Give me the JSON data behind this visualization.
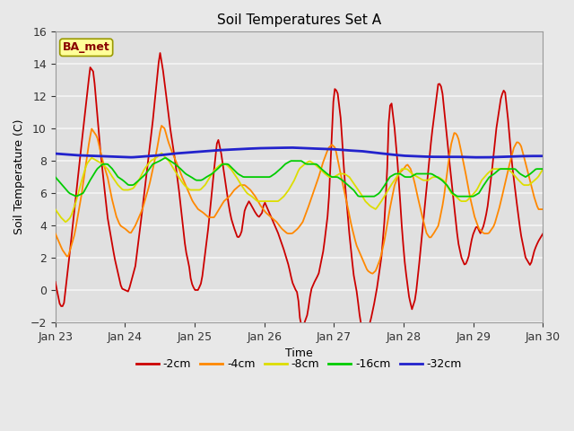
{
  "title": "Soil Temperatures Set A",
  "xlabel": "Time",
  "ylabel": "Soil Temperature (C)",
  "ylim": [
    -2,
    16
  ],
  "xlim": [
    0,
    7
  ],
  "xtick_labels": [
    "Jan 23",
    "Jan 24",
    "Jan 25",
    "Jan 26",
    "Jan 27",
    "Jan 28",
    "Jan 29",
    "Jan 30"
  ],
  "ytick_positions": [
    -2,
    0,
    2,
    4,
    6,
    8,
    10,
    12,
    14,
    16
  ],
  "fig_bg": "#e8e8e8",
  "axes_bg": "#e0e0e0",
  "grid_color": "#f5f5f5",
  "title_fontsize": 11,
  "label_fontsize": 9,
  "tick_fontsize": 9,
  "annotation_text": "BA_met",
  "annotation_bg": "#ffff99",
  "annotation_border": "#999900",
  "colors": {
    "2cm": "#cc0000",
    "4cm": "#ff8800",
    "8cm": "#dddd00",
    "16cm": "#00cc00",
    "32cm": "#2222cc"
  },
  "pts_2cm": [
    [
      0.0,
      0.5
    ],
    [
      0.07,
      -1.0
    ],
    [
      0.12,
      -1.0
    ],
    [
      0.2,
      2.0
    ],
    [
      0.35,
      8.0
    ],
    [
      0.5,
      13.8
    ],
    [
      0.55,
      13.5
    ],
    [
      0.65,
      8.5
    ],
    [
      0.75,
      4.5
    ],
    [
      0.85,
      2.0
    ],
    [
      0.95,
      0.1
    ],
    [
      1.0,
      0.0
    ],
    [
      1.05,
      -0.1
    ],
    [
      1.15,
      1.5
    ],
    [
      1.25,
      5.0
    ],
    [
      1.4,
      10.5
    ],
    [
      1.5,
      14.8
    ],
    [
      1.55,
      13.5
    ],
    [
      1.65,
      10.0
    ],
    [
      1.72,
      8.0
    ],
    [
      1.78,
      6.0
    ],
    [
      1.83,
      4.0
    ],
    [
      1.87,
      2.5
    ],
    [
      1.92,
      1.5
    ],
    [
      1.95,
      0.5
    ],
    [
      2.0,
      0.0
    ],
    [
      2.05,
      0.0
    ],
    [
      2.1,
      0.5
    ],
    [
      2.2,
      4.0
    ],
    [
      2.28,
      7.5
    ],
    [
      2.33,
      9.5
    ],
    [
      2.38,
      8.5
    ],
    [
      2.43,
      7.0
    ],
    [
      2.48,
      5.5
    ],
    [
      2.52,
      4.5
    ],
    [
      2.57,
      3.8
    ],
    [
      2.62,
      3.2
    ],
    [
      2.67,
      3.5
    ],
    [
      2.72,
      5.0
    ],
    [
      2.78,
      5.5
    ],
    [
      2.82,
      5.2
    ],
    [
      2.87,
      4.8
    ],
    [
      2.92,
      4.5
    ],
    [
      2.97,
      4.8
    ],
    [
      3.0,
      5.5
    ],
    [
      3.05,
      5.0
    ],
    [
      3.1,
      4.5
    ],
    [
      3.15,
      4.0
    ],
    [
      3.2,
      3.5
    ],
    [
      3.28,
      2.5
    ],
    [
      3.35,
      1.5
    ],
    [
      3.4,
      0.5
    ],
    [
      3.45,
      0.0
    ],
    [
      3.48,
      -0.2
    ],
    [
      3.52,
      -2.2
    ],
    [
      3.57,
      -2.1
    ],
    [
      3.62,
      -1.5
    ],
    [
      3.67,
      0.0
    ],
    [
      3.72,
      0.5
    ],
    [
      3.78,
      1.0
    ],
    [
      3.85,
      2.5
    ],
    [
      3.92,
      5.0
    ],
    [
      4.0,
      12.5
    ],
    [
      4.05,
      12.3
    ],
    [
      4.1,
      10.5
    ],
    [
      4.15,
      7.0
    ],
    [
      4.18,
      5.5
    ],
    [
      4.22,
      3.5
    ],
    [
      4.28,
      1.0
    ],
    [
      4.33,
      -0.2
    ],
    [
      4.38,
      -2.0
    ],
    [
      4.42,
      -2.5
    ],
    [
      4.47,
      -2.5
    ],
    [
      4.52,
      -2.0
    ],
    [
      4.57,
      -1.0
    ],
    [
      4.62,
      0.2
    ],
    [
      4.68,
      2.0
    ],
    [
      4.72,
      4.0
    ],
    [
      4.76,
      7.0
    ],
    [
      4.79,
      11.0
    ],
    [
      4.82,
      11.8
    ],
    [
      4.87,
      10.0
    ],
    [
      4.91,
      8.0
    ],
    [
      4.95,
      5.5
    ],
    [
      4.98,
      3.5
    ],
    [
      5.02,
      1.5
    ],
    [
      5.05,
      0.5
    ],
    [
      5.08,
      -0.5
    ],
    [
      5.12,
      -1.2
    ],
    [
      5.17,
      -0.5
    ],
    [
      5.22,
      1.5
    ],
    [
      5.3,
      5.0
    ],
    [
      5.4,
      9.5
    ],
    [
      5.5,
      12.9
    ],
    [
      5.55,
      12.5
    ],
    [
      5.62,
      9.5
    ],
    [
      5.68,
      7.0
    ],
    [
      5.73,
      5.0
    ],
    [
      5.78,
      3.0
    ],
    [
      5.83,
      2.0
    ],
    [
      5.88,
      1.5
    ],
    [
      5.93,
      2.0
    ],
    [
      5.97,
      3.0
    ],
    [
      6.0,
      3.5
    ],
    [
      6.05,
      4.0
    ],
    [
      6.1,
      3.5
    ],
    [
      6.15,
      4.0
    ],
    [
      6.2,
      5.0
    ],
    [
      6.27,
      7.5
    ],
    [
      6.33,
      10.0
    ],
    [
      6.4,
      12.0
    ],
    [
      6.45,
      12.5
    ],
    [
      6.5,
      10.5
    ],
    [
      6.55,
      8.0
    ],
    [
      6.62,
      5.5
    ],
    [
      6.68,
      3.5
    ],
    [
      6.75,
      2.0
    ],
    [
      6.82,
      1.5
    ],
    [
      6.88,
      2.5
    ],
    [
      6.93,
      3.0
    ],
    [
      7.0,
      3.5
    ]
  ],
  "pts_4cm": [
    [
      0.0,
      3.5
    ],
    [
      0.1,
      2.5
    ],
    [
      0.18,
      2.0
    ],
    [
      0.28,
      3.5
    ],
    [
      0.38,
      6.0
    ],
    [
      0.48,
      9.0
    ],
    [
      0.52,
      10.0
    ],
    [
      0.6,
      9.5
    ],
    [
      0.68,
      8.0
    ],
    [
      0.75,
      7.0
    ],
    [
      0.82,
      5.5
    ],
    [
      0.88,
      4.5
    ],
    [
      0.93,
      4.0
    ],
    [
      1.0,
      3.8
    ],
    [
      1.08,
      3.5
    ],
    [
      1.15,
      4.0
    ],
    [
      1.25,
      5.0
    ],
    [
      1.35,
      6.5
    ],
    [
      1.45,
      8.5
    ],
    [
      1.52,
      10.2
    ],
    [
      1.57,
      10.0
    ],
    [
      1.62,
      9.2
    ],
    [
      1.68,
      8.5
    ],
    [
      1.75,
      7.8
    ],
    [
      1.82,
      7.0
    ],
    [
      1.9,
      6.2
    ],
    [
      1.97,
      5.5
    ],
    [
      2.05,
      5.0
    ],
    [
      2.12,
      4.8
    ],
    [
      2.2,
      4.5
    ],
    [
      2.28,
      4.5
    ],
    [
      2.35,
      5.0
    ],
    [
      2.42,
      5.5
    ],
    [
      2.5,
      5.8
    ],
    [
      2.57,
      6.2
    ],
    [
      2.65,
      6.5
    ],
    [
      2.72,
      6.5
    ],
    [
      2.8,
      6.2
    ],
    [
      2.87,
      5.8
    ],
    [
      2.95,
      5.2
    ],
    [
      3.02,
      4.8
    ],
    [
      3.1,
      4.5
    ],
    [
      3.18,
      4.2
    ],
    [
      3.25,
      3.8
    ],
    [
      3.33,
      3.5
    ],
    [
      3.4,
      3.5
    ],
    [
      3.48,
      3.8
    ],
    [
      3.55,
      4.2
    ],
    [
      3.62,
      5.0
    ],
    [
      3.7,
      6.0
    ],
    [
      3.78,
      7.0
    ],
    [
      3.85,
      8.0
    ],
    [
      3.92,
      8.8
    ],
    [
      3.97,
      9.0
    ],
    [
      4.02,
      8.8
    ],
    [
      4.08,
      7.5
    ],
    [
      4.13,
      6.5
    ],
    [
      4.18,
      5.5
    ],
    [
      4.25,
      4.0
    ],
    [
      4.32,
      2.8
    ],
    [
      4.4,
      2.0
    ],
    [
      4.48,
      1.2
    ],
    [
      4.55,
      1.0
    ],
    [
      4.6,
      1.2
    ],
    [
      4.67,
      2.0
    ],
    [
      4.73,
      3.2
    ],
    [
      4.8,
      5.0
    ],
    [
      4.87,
      6.5
    ],
    [
      4.93,
      7.2
    ],
    [
      5.0,
      7.5
    ],
    [
      5.05,
      7.8
    ],
    [
      5.1,
      7.5
    ],
    [
      5.15,
      6.8
    ],
    [
      5.2,
      5.8
    ],
    [
      5.27,
      4.5
    ],
    [
      5.33,
      3.5
    ],
    [
      5.38,
      3.2
    ],
    [
      5.43,
      3.5
    ],
    [
      5.5,
      4.0
    ],
    [
      5.57,
      5.5
    ],
    [
      5.63,
      7.5
    ],
    [
      5.68,
      9.0
    ],
    [
      5.73,
      9.8
    ],
    [
      5.78,
      9.5
    ],
    [
      5.83,
      8.5
    ],
    [
      5.9,
      7.0
    ],
    [
      5.95,
      5.8
    ],
    [
      6.02,
      4.5
    ],
    [
      6.08,
      3.8
    ],
    [
      6.15,
      3.5
    ],
    [
      6.22,
      3.5
    ],
    [
      6.3,
      4.0
    ],
    [
      6.38,
      5.2
    ],
    [
      6.45,
      6.5
    ],
    [
      6.52,
      7.8
    ],
    [
      6.58,
      8.8
    ],
    [
      6.63,
      9.2
    ],
    [
      6.68,
      9.0
    ],
    [
      6.73,
      8.2
    ],
    [
      6.8,
      7.0
    ],
    [
      6.87,
      5.8
    ],
    [
      6.93,
      5.0
    ],
    [
      7.0,
      5.0
    ]
  ],
  "pts_8cm": [
    [
      0.0,
      5.0
    ],
    [
      0.08,
      4.5
    ],
    [
      0.15,
      4.2
    ],
    [
      0.22,
      4.5
    ],
    [
      0.3,
      5.5
    ],
    [
      0.38,
      6.8
    ],
    [
      0.45,
      7.8
    ],
    [
      0.52,
      8.2
    ],
    [
      0.6,
      8.0
    ],
    [
      0.68,
      7.8
    ],
    [
      0.75,
      7.5
    ],
    [
      0.82,
      7.0
    ],
    [
      0.9,
      6.5
    ],
    [
      0.97,
      6.2
    ],
    [
      1.05,
      6.2
    ],
    [
      1.12,
      6.3
    ],
    [
      1.2,
      6.8
    ],
    [
      1.28,
      7.5
    ],
    [
      1.37,
      8.0
    ],
    [
      1.45,
      8.2
    ],
    [
      1.53,
      8.5
    ],
    [
      1.58,
      8.2
    ],
    [
      1.63,
      8.0
    ],
    [
      1.7,
      7.5
    ],
    [
      1.77,
      7.0
    ],
    [
      1.85,
      6.5
    ],
    [
      1.93,
      6.2
    ],
    [
      2.0,
      6.2
    ],
    [
      2.08,
      6.2
    ],
    [
      2.15,
      6.5
    ],
    [
      2.22,
      7.0
    ],
    [
      2.3,
      7.5
    ],
    [
      2.38,
      7.8
    ],
    [
      2.45,
      7.8
    ],
    [
      2.52,
      7.5
    ],
    [
      2.6,
      7.0
    ],
    [
      2.67,
      6.5
    ],
    [
      2.75,
      6.0
    ],
    [
      2.82,
      5.8
    ],
    [
      2.9,
      5.5
    ],
    [
      2.97,
      5.5
    ],
    [
      3.05,
      5.5
    ],
    [
      3.12,
      5.5
    ],
    [
      3.2,
      5.5
    ],
    [
      3.28,
      5.8
    ],
    [
      3.35,
      6.2
    ],
    [
      3.43,
      6.8
    ],
    [
      3.5,
      7.5
    ],
    [
      3.58,
      7.8
    ],
    [
      3.65,
      8.0
    ],
    [
      3.72,
      7.8
    ],
    [
      3.8,
      7.5
    ],
    [
      3.87,
      7.2
    ],
    [
      3.93,
      7.0
    ],
    [
      4.0,
      7.0
    ],
    [
      4.08,
      7.2
    ],
    [
      4.15,
      7.2
    ],
    [
      4.22,
      7.0
    ],
    [
      4.3,
      6.5
    ],
    [
      4.38,
      6.0
    ],
    [
      4.45,
      5.5
    ],
    [
      4.52,
      5.2
    ],
    [
      4.6,
      5.0
    ],
    [
      4.68,
      5.5
    ],
    [
      4.75,
      6.0
    ],
    [
      4.82,
      6.5
    ],
    [
      4.9,
      7.0
    ],
    [
      4.97,
      7.5
    ],
    [
      5.05,
      7.5
    ],
    [
      5.12,
      7.2
    ],
    [
      5.2,
      7.0
    ],
    [
      5.28,
      6.8
    ],
    [
      5.35,
      6.8
    ],
    [
      5.42,
      7.0
    ],
    [
      5.5,
      7.0
    ],
    [
      5.57,
      6.8
    ],
    [
      5.62,
      6.5
    ],
    [
      5.68,
      6.0
    ],
    [
      5.75,
      5.8
    ],
    [
      5.82,
      5.5
    ],
    [
      5.9,
      5.5
    ],
    [
      5.97,
      5.8
    ],
    [
      6.05,
      6.2
    ],
    [
      6.12,
      6.8
    ],
    [
      6.2,
      7.2
    ],
    [
      6.28,
      7.5
    ],
    [
      6.35,
      7.5
    ],
    [
      6.42,
      7.5
    ],
    [
      6.5,
      7.5
    ],
    [
      6.57,
      7.2
    ],
    [
      6.65,
      6.8
    ],
    [
      6.72,
      6.5
    ],
    [
      6.8,
      6.5
    ],
    [
      6.88,
      6.8
    ],
    [
      6.93,
      7.0
    ],
    [
      7.0,
      7.5
    ]
  ],
  "pts_16cm": [
    [
      0.0,
      7.0
    ],
    [
      0.1,
      6.5
    ],
    [
      0.2,
      6.0
    ],
    [
      0.3,
      5.8
    ],
    [
      0.4,
      6.0
    ],
    [
      0.5,
      6.8
    ],
    [
      0.6,
      7.5
    ],
    [
      0.68,
      7.8
    ],
    [
      0.75,
      7.8
    ],
    [
      0.82,
      7.5
    ],
    [
      0.9,
      7.0
    ],
    [
      0.97,
      6.8
    ],
    [
      1.05,
      6.5
    ],
    [
      1.12,
      6.5
    ],
    [
      1.2,
      6.8
    ],
    [
      1.3,
      7.2
    ],
    [
      1.4,
      7.8
    ],
    [
      1.5,
      8.0
    ],
    [
      1.58,
      8.2
    ],
    [
      1.65,
      8.0
    ],
    [
      1.72,
      7.8
    ],
    [
      1.8,
      7.5
    ],
    [
      1.87,
      7.2
    ],
    [
      1.95,
      7.0
    ],
    [
      2.02,
      6.8
    ],
    [
      2.1,
      6.8
    ],
    [
      2.17,
      7.0
    ],
    [
      2.25,
      7.2
    ],
    [
      2.33,
      7.5
    ],
    [
      2.4,
      7.8
    ],
    [
      2.48,
      7.8
    ],
    [
      2.55,
      7.5
    ],
    [
      2.62,
      7.2
    ],
    [
      2.7,
      7.0
    ],
    [
      2.78,
      7.0
    ],
    [
      2.85,
      7.0
    ],
    [
      2.93,
      7.0
    ],
    [
      3.0,
      7.0
    ],
    [
      3.08,
      7.0
    ],
    [
      3.15,
      7.2
    ],
    [
      3.23,
      7.5
    ],
    [
      3.3,
      7.8
    ],
    [
      3.38,
      8.0
    ],
    [
      3.45,
      8.0
    ],
    [
      3.53,
      8.0
    ],
    [
      3.6,
      7.8
    ],
    [
      3.68,
      7.8
    ],
    [
      3.75,
      7.8
    ],
    [
      3.82,
      7.5
    ],
    [
      3.9,
      7.2
    ],
    [
      3.97,
      7.0
    ],
    [
      4.05,
      7.0
    ],
    [
      4.12,
      6.8
    ],
    [
      4.2,
      6.5
    ],
    [
      4.28,
      6.2
    ],
    [
      4.35,
      5.8
    ],
    [
      4.43,
      5.8
    ],
    [
      4.5,
      5.8
    ],
    [
      4.58,
      5.8
    ],
    [
      4.65,
      6.0
    ],
    [
      4.73,
      6.5
    ],
    [
      4.8,
      7.0
    ],
    [
      4.88,
      7.2
    ],
    [
      4.95,
      7.2
    ],
    [
      5.02,
      7.0
    ],
    [
      5.1,
      7.0
    ],
    [
      5.18,
      7.2
    ],
    [
      5.25,
      7.2
    ],
    [
      5.32,
      7.2
    ],
    [
      5.4,
      7.2
    ],
    [
      5.48,
      7.0
    ],
    [
      5.55,
      6.8
    ],
    [
      5.62,
      6.5
    ],
    [
      5.7,
      6.0
    ],
    [
      5.77,
      5.8
    ],
    [
      5.85,
      5.8
    ],
    [
      5.92,
      5.8
    ],
    [
      6.0,
      5.8
    ],
    [
      6.08,
      6.0
    ],
    [
      6.15,
      6.5
    ],
    [
      6.23,
      7.0
    ],
    [
      6.3,
      7.2
    ],
    [
      6.38,
      7.5
    ],
    [
      6.45,
      7.5
    ],
    [
      6.53,
      7.5
    ],
    [
      6.6,
      7.5
    ],
    [
      6.67,
      7.2
    ],
    [
      6.75,
      7.0
    ],
    [
      6.82,
      7.2
    ],
    [
      6.9,
      7.5
    ],
    [
      7.0,
      7.5
    ]
  ],
  "pts_32cm": [
    [
      0.0,
      8.45
    ],
    [
      0.3,
      8.35
    ],
    [
      0.6,
      8.3
    ],
    [
      0.9,
      8.25
    ],
    [
      1.1,
      8.22
    ],
    [
      1.3,
      8.28
    ],
    [
      1.5,
      8.35
    ],
    [
      1.7,
      8.45
    ],
    [
      2.0,
      8.55
    ],
    [
      2.3,
      8.65
    ],
    [
      2.6,
      8.72
    ],
    [
      2.9,
      8.78
    ],
    [
      3.1,
      8.8
    ],
    [
      3.4,
      8.82
    ],
    [
      3.6,
      8.78
    ],
    [
      3.8,
      8.75
    ],
    [
      4.0,
      8.72
    ],
    [
      4.2,
      8.65
    ],
    [
      4.4,
      8.6
    ],
    [
      4.6,
      8.5
    ],
    [
      4.8,
      8.4
    ],
    [
      5.0,
      8.32
    ],
    [
      5.2,
      8.28
    ],
    [
      5.4,
      8.25
    ],
    [
      5.6,
      8.25
    ],
    [
      5.8,
      8.25
    ],
    [
      6.0,
      8.22
    ],
    [
      6.2,
      8.22
    ],
    [
      6.4,
      8.25
    ],
    [
      6.6,
      8.28
    ],
    [
      6.8,
      8.3
    ],
    [
      7.0,
      8.3
    ]
  ]
}
